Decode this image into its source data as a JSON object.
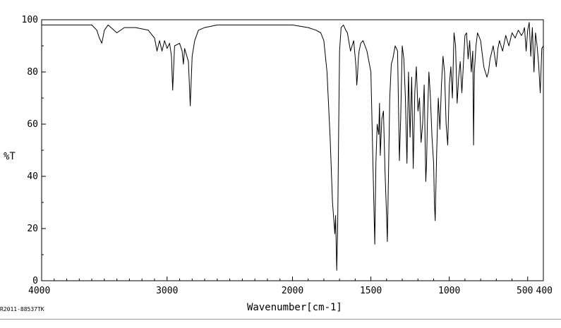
{
  "chart_data": {
    "type": "line",
    "title": "",
    "xlabel": "Wavenumber[cm-1]",
    "ylabel": "%T",
    "xlim": [
      4000,
      400
    ],
    "ylim": [
      0,
      100
    ],
    "x_ticks": [
      4000,
      3000,
      2000,
      1500,
      1000,
      500,
      400
    ],
    "x_tick_labels": [
      "4000",
      "3000",
      "2000",
      "1500",
      "1000",
      "500",
      "400"
    ],
    "y_ticks": [
      0,
      20,
      40,
      60,
      80,
      100
    ],
    "y_tick_labels": [
      "0",
      "20",
      "40",
      "60",
      "80",
      "100"
    ],
    "grid": false,
    "x_axis_scale": "split: 2000 cm-1 at mid-axis",
    "line_color": "#000000",
    "series": [
      {
        "name": "",
        "x": [
          4000,
          3800,
          3600,
          3560,
          3540,
          3520,
          3500,
          3470,
          3400,
          3340,
          3250,
          3150,
          3100,
          3080,
          3060,
          3040,
          3020,
          3000,
          2980,
          2965,
          2955,
          2940,
          2900,
          2880,
          2870,
          2860,
          2830,
          2815,
          2800,
          2780,
          2750,
          2700,
          2600,
          2500,
          2300,
          2100,
          2000,
          1900,
          1850,
          1820,
          1800,
          1780,
          1760,
          1745,
          1730,
          1725,
          1718,
          1712,
          1705,
          1700,
          1690,
          1675,
          1660,
          1650,
          1630,
          1610,
          1595,
          1590,
          1585,
          1580,
          1575,
          1565,
          1550,
          1525,
          1500,
          1485,
          1475,
          1468,
          1460,
          1450,
          1445,
          1440,
          1430,
          1420,
          1410,
          1400,
          1395,
          1388,
          1380,
          1370,
          1360,
          1345,
          1330,
          1318,
          1310,
          1300,
          1290,
          1280,
          1270,
          1260,
          1250,
          1240,
          1230,
          1220,
          1210,
          1200,
          1190,
          1180,
          1170,
          1160,
          1150,
          1145,
          1140,
          1130,
          1120,
          1110,
          1100,
          1095,
          1090,
          1080,
          1070,
          1060,
          1050,
          1040,
          1030,
          1020,
          1010,
          1000,
          990,
          980,
          970,
          960,
          950,
          940,
          930,
          920,
          900,
          890,
          880,
          870,
          860,
          850,
          845,
          840,
          830,
          820,
          800,
          780,
          760,
          750,
          740,
          720,
          700,
          690,
          680,
          660,
          640,
          620,
          600,
          580,
          560,
          540,
          530,
          520,
          510,
          500,
          490,
          480,
          470,
          460,
          450,
          440,
          430,
          420,
          410,
          400
        ],
        "y": [
          98,
          98,
          98,
          96,
          93,
          91,
          96,
          98,
          95,
          97,
          97,
          96,
          93,
          88,
          92,
          88,
          92,
          89,
          91,
          86,
          73,
          90,
          91,
          88,
          83,
          89,
          84,
          67,
          86,
          92,
          96,
          97,
          98,
          98,
          98,
          98,
          98,
          97,
          96,
          95,
          92,
          80,
          55,
          30,
          18,
          25,
          4,
          20,
          60,
          88,
          97,
          98,
          96,
          95,
          88,
          92,
          82,
          75,
          79,
          85,
          88,
          91,
          92,
          88,
          80,
          40,
          14,
          45,
          60,
          56,
          68,
          48,
          62,
          65,
          42,
          25,
          15,
          40,
          70,
          83,
          85,
          90,
          88,
          46,
          62,
          90,
          85,
          70,
          45,
          80,
          55,
          78,
          43,
          72,
          82,
          65,
          70,
          53,
          60,
          75,
          38,
          45,
          60,
          80,
          70,
          55,
          45,
          30,
          23,
          50,
          70,
          58,
          75,
          86,
          80,
          60,
          52,
          75,
          82,
          70,
          95,
          90,
          68,
          78,
          84,
          72,
          94,
          95,
          85,
          92,
          80,
          88,
          52,
          80,
          90,
          95,
          92,
          82,
          78,
          80,
          85,
          90,
          82,
          89,
          92,
          88,
          94,
          90,
          95,
          93,
          96,
          94,
          95,
          97,
          88,
          96,
          99,
          86,
          97,
          80,
          95,
          90,
          83,
          72,
          89,
          90
        ]
      }
    ],
    "annotations": [
      "R2011-88537TK"
    ]
  }
}
